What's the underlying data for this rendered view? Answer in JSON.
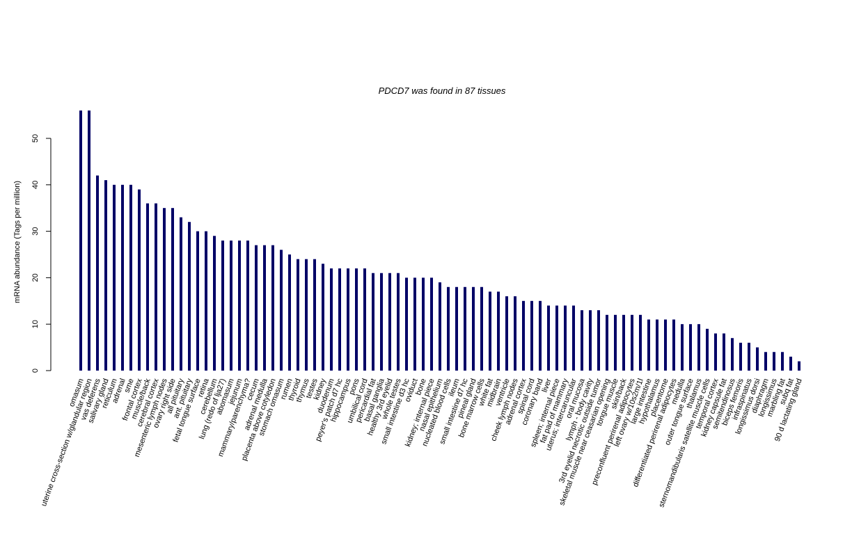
{
  "chart_data": {
    "type": "bar",
    "title": "PDCD7  was found in  87  tissues",
    "xlabel": "",
    "ylabel": "mRNA abundance (Tags per million)",
    "ylim": [
      0,
      56
    ],
    "yticks": [
      0,
      10,
      20,
      30,
      40,
      50
    ],
    "grid": false,
    "bar_color": "#000066",
    "categories": [
      "omasum",
      "uterine cross-section w/glandular region",
      "vas deferens",
      "salivary gland",
      "reticulum",
      "adrenal",
      "sme",
      "frontal cortex",
      "muscle/back",
      "cerebral cortex",
      "mesenteric lymph nodes",
      "ovary right side",
      "all pituitary",
      "ant. pituitary",
      "fetal tongue surface",
      "retina",
      "cerebellum",
      "lung (redo of lja27)",
      "abomasum",
      "jejunum",
      "mammary/parenchyma?",
      "cecum",
      "adrenal medulla",
      "placenta above cotyledon",
      "stomach omasum",
      "rumen",
      "thyroid",
      "thymus",
      "testes",
      "kidney",
      "duodenum",
      "peyer's patch d7 hc",
      "hippocampus",
      "pons",
      "umbilical cord",
      "pericardial fat",
      "basal ganglia",
      "healthy 3rd eyelid",
      "whole testes",
      "small intestine d3 hc",
      "oviduct",
      "bone",
      "kidney; internal piece",
      "nasal epithelium",
      "nucleated blood cells",
      "ileum",
      "small intestine d7 hc",
      "pineal gland",
      "bone marrow cells",
      "white fat",
      "midbrain",
      "ventricle",
      "cheek lymph nodes",
      "adrenal cortex",
      "spinal cord",
      "coronary band",
      "liver",
      "spleen; internal piece",
      "fat pad of mammary",
      "uterus; intercaruncular",
      "oral mucosa",
      "lymph - body cavity",
      "3rd eyelid necrotic outside tumor",
      "skeletal muscle near ceasarian opening",
      "tongue muscle",
      "skin/back",
      "preconfluent perirenal adipocytes",
      "left ovary w/10s2m/1l",
      "large intestine",
      "hypothalamus",
      "placentome",
      "differentiated perirenal adipocytes",
      "medulla",
      "outer tongue surface",
      "thalamus",
      "sternomandibularis satellite muscle cells",
      "temporal cortex",
      "kidney capsule fat",
      "semitendinosus",
      "biceps femoris",
      "infraspinatus",
      "longissimus dorsi",
      "diaphragm",
      "longissimus",
      "marbling fat",
      "subq fat",
      "90 d lactating gland"
    ],
    "values": [
      56,
      56,
      42,
      41,
      40,
      40,
      40,
      39,
      36,
      36,
      35,
      35,
      33,
      32,
      30,
      30,
      29,
      28,
      28,
      28,
      28,
      27,
      27,
      27,
      26,
      25,
      24,
      24,
      24,
      23,
      22,
      22,
      22,
      22,
      22,
      21,
      21,
      21,
      21,
      20,
      20,
      20,
      20,
      19,
      18,
      18,
      18,
      18,
      18,
      17,
      17,
      16,
      16,
      15,
      15,
      15,
      14,
      14,
      14,
      14,
      13,
      13,
      13,
      12,
      12,
      12,
      12,
      12,
      11,
      11,
      11,
      11,
      10,
      10,
      10,
      9,
      8,
      8,
      7,
      6,
      6,
      5,
      4,
      4,
      4,
      3,
      2
    ]
  }
}
